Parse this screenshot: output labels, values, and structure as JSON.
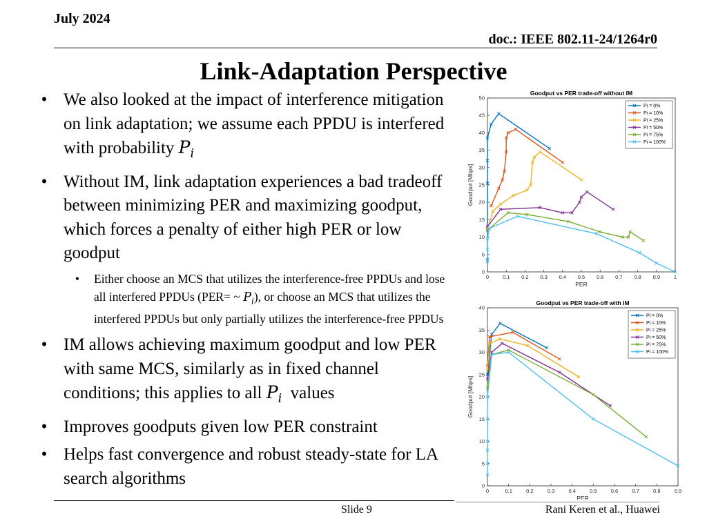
{
  "header": {
    "date": "July 2024",
    "doc": "doc.: IEEE 802.11-24/1264r0"
  },
  "title": "Link-Adaptation Perspective",
  "bullets": {
    "b1_text": "We also looked at the impact of interference mitigation on link adaptation; we assume each PPDU is interfered with probability ",
    "b1_math": "P",
    "b1_sub": "i",
    "b2": "Without IM, link adaptation experiences a bad tradeoff between minimizing PER and maximizing goodput, which forces a penalty of either high PER or low goodput",
    "b2_sub_a": "Either choose an MCS that utilizes the interference-free PPDUs and lose all interfered PPDUs (PER= ~ ",
    "b2_sub_math": "P",
    "b2_sub_sub": "i",
    "b2_sub_b": "), or choose an MCS that utilizes the interfered PPDUs but only partially utilizes the interference-free PPDUs",
    "b3_a": "IM allows achieving maximum goodput and low PER with same MCS, similarly as in fixed channel conditions; this applies to all ",
    "b3_math": "P",
    "b3_sub": "i",
    "b3_b": "  values",
    "b4": "Improves goodputs given low PER constraint",
    "b5": "Helps fast convergence and robust steady-state for LA search algorithms"
  },
  "footer": {
    "slide": "Slide 9",
    "authors": "Rani Keren et al., Huawei"
  },
  "colors": {
    "s0": "#0072BD",
    "s1": "#D95319",
    "s2": "#EDB120",
    "s3": "#7E2F8E",
    "s4": "#77AC30",
    "s5": "#4DBEEE"
  },
  "chart_data": [
    {
      "type": "line",
      "title": "Goodput vs PER trade-off without IM",
      "xlabel": "PER",
      "ylabel": "Goodput [Mbps]",
      "xlim": [
        0,
        1
      ],
      "ylim": [
        0,
        50
      ],
      "xticks": [
        0,
        0.1,
        0.2,
        0.3,
        0.4,
        0.5,
        0.6,
        0.7,
        0.8,
        0.9,
        1
      ],
      "yticks": [
        0,
        5,
        10,
        15,
        20,
        25,
        30,
        35,
        40,
        45,
        50
      ],
      "legend_position": "top-right",
      "series": [
        {
          "name": "Pi = 0%",
          "x": [
            0,
            0,
            0,
            0,
            0,
            0.02,
            0.06,
            0.33
          ],
          "y": [
            3.5,
            12,
            25.5,
            32,
            38.5,
            42.5,
            45.5,
            35.5
          ]
        },
        {
          "name": "Pi = 10%",
          "x": [
            0.02,
            0.06,
            0.08,
            0.09,
            0.1,
            0.1,
            0.11,
            0.15,
            0.4
          ],
          "y": [
            19,
            24,
            26.5,
            29,
            34.5,
            38.5,
            40,
            41,
            31.5
          ]
        },
        {
          "name": "Pi = 25%",
          "x": [
            0,
            0.03,
            0.07,
            0.14,
            0.21,
            0.23,
            0.24,
            0.25,
            0.28,
            0.5
          ],
          "y": [
            12.5,
            17.5,
            19.5,
            22,
            23.5,
            25,
            31.5,
            33,
            34.5,
            26.5
          ]
        },
        {
          "name": "Pi = 50%",
          "x": [
            0,
            0.07,
            0.28,
            0.4,
            0.45,
            0.49,
            0.5,
            0.53,
            0.67
          ],
          "y": [
            13,
            18,
            18.5,
            17,
            17,
            20,
            21.5,
            23,
            18
          ]
        },
        {
          "name": "Pi = 75%",
          "x": [
            0,
            0.11,
            0.21,
            0.43,
            0.6,
            0.72,
            0.75,
            0.76,
            0.83
          ],
          "y": [
            12,
            17,
            16.5,
            14.5,
            11.5,
            10,
            10,
            11.5,
            9
          ]
        },
        {
          "name": "Pi = 100%",
          "x": [
            0,
            0,
            0,
            0.01,
            0.16,
            0.58,
            0.81,
            0.9,
            1.0
          ],
          "y": [
            3,
            6.5,
            9.5,
            12.5,
            16,
            11,
            5.5,
            2.5,
            0
          ]
        }
      ]
    },
    {
      "type": "line",
      "title": "Goodput vs PER trade-off with IM",
      "xlabel": "PER",
      "ylabel": "Goodput [Mbps]",
      "xlim": [
        0,
        0.9
      ],
      "ylim": [
        0,
        40
      ],
      "xticks": [
        0,
        0.1,
        0.2,
        0.3,
        0.4,
        0.5,
        0.6,
        0.7,
        0.8,
        0.9
      ],
      "yticks": [
        0,
        5,
        10,
        15,
        20,
        25,
        30,
        35,
        40
      ],
      "legend_position": "top-right",
      "series": [
        {
          "name": "Pi = 0%",
          "x": [
            0,
            0.02,
            0.06,
            0.28
          ],
          "y": [
            25,
            34,
            36.5,
            31
          ]
        },
        {
          "name": "Pi = 10%",
          "x": [
            0,
            0.01,
            0.12,
            0.34
          ],
          "y": [
            27,
            33.5,
            34.5,
            28.5
          ]
        },
        {
          "name": "Pi = 25%",
          "x": [
            0,
            0.01,
            0.06,
            0.19,
            0.43
          ],
          "y": [
            26,
            32,
            33,
            31.5,
            24.5
          ]
        },
        {
          "name": "Pi = 50%",
          "x": [
            0,
            0.02,
            0.07,
            0.34,
            0.58
          ],
          "y": [
            24,
            30,
            32,
            25.5,
            18
          ]
        },
        {
          "name": "Pi = 75%",
          "x": [
            0,
            0.02,
            0.1,
            0.5,
            0.75
          ],
          "y": [
            22,
            29.5,
            30.5,
            20.5,
            11
          ]
        },
        {
          "name": "Pi = 100%",
          "x": [
            0,
            0,
            0,
            0,
            0,
            0,
            0.02,
            0.1,
            0.5,
            0.9
          ],
          "y": [
            2.5,
            5,
            8,
            10,
            15,
            20,
            29.5,
            30,
            15,
            4.5
          ]
        }
      ]
    }
  ]
}
